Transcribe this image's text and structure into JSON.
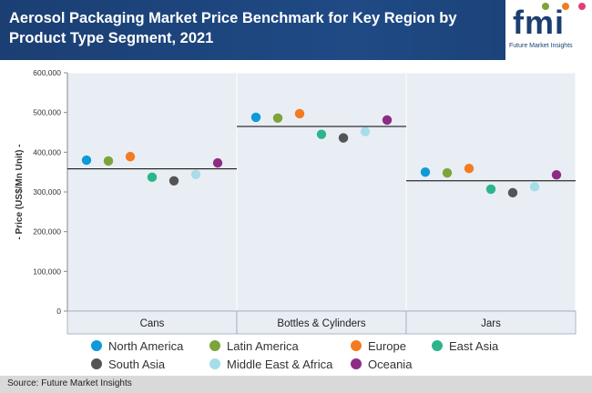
{
  "header": {
    "title": "Aerosol Packaging Market Price Benchmark for Key Region by Product Type Segment, 2021",
    "logo_text": "fmi",
    "logo_subtitle": "Future Market Insights"
  },
  "footer": {
    "source": "Source: Future Market Insights"
  },
  "colors": {
    "header_bg": "#1b3f73",
    "panel_bg": "#e9eef5",
    "average_line": "#000000"
  },
  "chart_data": {
    "type": "scatter",
    "ylabel": "- Price (US$/Mn Unit) -",
    "ylim": [
      0,
      600000
    ],
    "yticks": [
      "0",
      "100,000",
      "200,000",
      "300,000",
      "400,000",
      "500,000",
      "600,000"
    ],
    "categories": [
      "Cans",
      "Bottles & Cylinders",
      "Jars"
    ],
    "averages": [
      358000,
      465000,
      328000
    ],
    "series": [
      {
        "name": "North America",
        "color": "#0e9ad7",
        "values": [
          380000,
          488000,
          350000
        ]
      },
      {
        "name": "Latin America",
        "color": "#7da43a",
        "values": [
          378000,
          486000,
          348000
        ]
      },
      {
        "name": "Europe",
        "color": "#f47b20",
        "values": [
          389000,
          497000,
          359000
        ]
      },
      {
        "name": "East Asia",
        "color": "#2bb58d",
        "values": [
          337000,
          445000,
          307000
        ]
      },
      {
        "name": "South Asia",
        "color": "#545454",
        "values": [
          328000,
          436000,
          298000
        ]
      },
      {
        "name": "Middle East & Africa",
        "color": "#a7dde8",
        "values": [
          344000,
          452000,
          313000
        ]
      },
      {
        "name": "Oceania",
        "color": "#8d2c84",
        "values": [
          373000,
          481000,
          343000
        ]
      }
    ],
    "grid": false,
    "legend_position": "bottom"
  }
}
